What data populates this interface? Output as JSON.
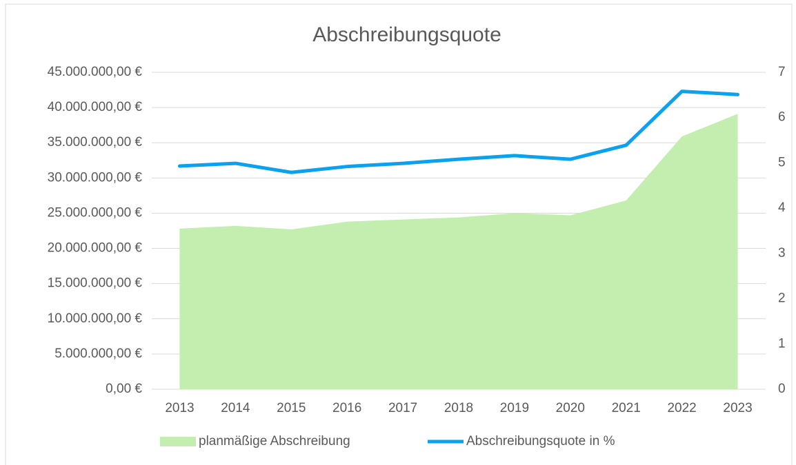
{
  "chart_data": {
    "type": "area_line",
    "title": "Abschreibungsquote",
    "categories": [
      "2013",
      "2014",
      "2015",
      "2016",
      "2017",
      "2018",
      "2019",
      "2020",
      "2021",
      "2022",
      "2023"
    ],
    "series": [
      {
        "name": "planmäßige Abschreibung",
        "type": "area",
        "color": "#c3eeb0",
        "values": [
          22800000,
          23200000,
          22700000,
          23800000,
          24100000,
          24400000,
          25000000,
          24700000,
          26800000,
          35900000,
          39100000
        ]
      },
      {
        "name": "Abschreibungsquote in %",
        "type": "line",
        "color": "#0aa2ef",
        "axis": "y2",
        "values": [
          4.93,
          4.99,
          4.79,
          4.92,
          4.99,
          5.08,
          5.16,
          5.08,
          5.39,
          6.58,
          6.51
        ]
      }
    ],
    "ylim": [
      0,
      45000000
    ],
    "yticks": [
      {
        "value": 0,
        "label": "0,00 €"
      },
      {
        "value": 5000000,
        "label": "5.000.000,00 €"
      },
      {
        "value": 10000000,
        "label": "10.000.000,00 €"
      },
      {
        "value": 15000000,
        "label": "15.000.000,00 €"
      },
      {
        "value": 20000000,
        "label": "20.000.000,00 €"
      },
      {
        "value": 25000000,
        "label": "25.000.000,00 €"
      },
      {
        "value": 30000000,
        "label": "30.000.000,00 €"
      },
      {
        "value": 35000000,
        "label": "35.000.000,00 €"
      },
      {
        "value": 40000000,
        "label": "40.000.000,00 €"
      },
      {
        "value": 45000000,
        "label": "45.000.000,00 €"
      }
    ],
    "y2lim": [
      0,
      7
    ],
    "y2ticks": [
      0,
      1,
      2,
      3,
      4,
      5,
      6,
      7
    ],
    "grid": true,
    "legend": "bottom"
  }
}
